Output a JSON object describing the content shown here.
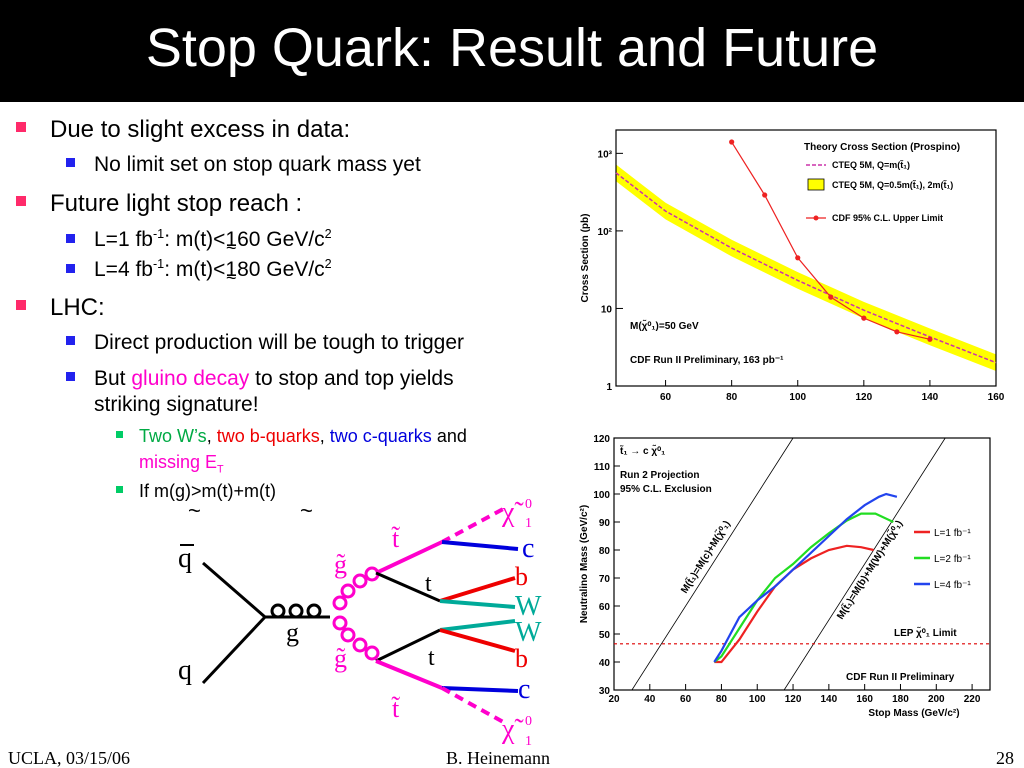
{
  "slide": {
    "title": "Stop Quark: Result and Future",
    "bullets": {
      "b1": "Due to slight excess in data:",
      "b1a": "No limit set on stop quark mass yet",
      "b2": "Future light stop reach :",
      "b2a_pre": "L=1 fb",
      "b2a_sup": "-1",
      "b2a_post": ":  m(t)<160 GeV/c",
      "b2a_sup2": "2",
      "b2b_pre": "L=4 fb",
      "b2b_sup": "-1",
      "b2b_post": ":  m(t)<180 GeV/c",
      "b2b_sup2": "2",
      "tilde": "~",
      "b3": "LHC:",
      "b3a": "Direct production will be tough to trigger",
      "b3b_pre": "But ",
      "b3b_hl": "gluino decay",
      "b3b_post": " to stop and top yields",
      "b3b_line2": "striking signature!",
      "b3c_1": "Two W’s",
      "b3c_2": ", ",
      "b3c_3": "two b-quarks",
      "b3c_4": ", ",
      "b3c_5": "two c-quarks",
      "b3c_6": " and",
      "b3c_7": "missing E",
      "b3c_8": "T",
      "b3d": "If m(g)>m(t)+m(t)"
    },
    "footer": {
      "left": "UCLA, 03/15/06",
      "center": "B. Heinemann",
      "right": "28"
    },
    "colors": {
      "bullet_l1": "#ff2a6a",
      "bullet_l2": "#2222ee",
      "bullet_l3": "#00cc66",
      "highlight": "#ff00cc",
      "title_bg": "#000000"
    }
  },
  "feynman": {
    "q": "q",
    "qbar": "q",
    "g": "g",
    "gluino": "g̃",
    "stop": "t̃",
    "t": "t",
    "b": "b",
    "W": "W",
    "c": "c",
    "chi": "χ̃",
    "chi_sup": "0",
    "chi_sub": "1"
  },
  "chart_data": [
    {
      "type": "line",
      "title": "Theory Cross Section (Prospino)",
      "ylabel": "Cross Section (pb)",
      "xlim": [
        45,
        160
      ],
      "ylim": [
        1,
        2000
      ],
      "yscale": "log",
      "xticks": [
        60,
        80,
        100,
        120,
        140,
        160
      ],
      "yticks": [
        1,
        10,
        100,
        1000
      ],
      "ytick_labels": [
        "1",
        "10",
        "10²",
        "10³"
      ],
      "legend": [
        "CTEQ 5M, Q=m(t̃₁)",
        "CTEQ 5M, Q=0.5m(t̃₁), 2m(t̃₁)",
        "CDF 95% C.L. Upper Limit"
      ],
      "annotations": [
        "M(χ̃⁰₁)=50 GeV",
        "CDF Run II Preliminary, 163 pb⁻¹"
      ],
      "series": [
        {
          "name": "CTEQ 5M, Q=m(t̃₁)",
          "x": [
            45,
            60,
            80,
            100,
            120,
            140,
            160
          ],
          "values": [
            560,
            180,
            60,
            23,
            9.5,
            4.3,
            2.0
          ]
        },
        {
          "name": "CDF 95% C.L. Upper Limit",
          "x": [
            80,
            90,
            100,
            110,
            120,
            130,
            140
          ],
          "values": [
            1400,
            290,
            45,
            14,
            7.5,
            5.0,
            4.0
          ]
        }
      ]
    },
    {
      "type": "line",
      "title": "",
      "xlabel": "Stop Mass (GeV/c²)",
      "ylabel": "Neutralino Mass (GeV/c²)",
      "xlim": [
        20,
        230
      ],
      "ylim": [
        30,
        120
      ],
      "xticks": [
        20,
        40,
        60,
        80,
        100,
        120,
        140,
        160,
        180,
        200,
        220
      ],
      "yticks": [
        30,
        40,
        50,
        60,
        70,
        80,
        90,
        100,
        110,
        120
      ],
      "annotations": [
        "t̃₁ → c χ̃⁰₁",
        "Run 2 Projection",
        "95% C.L. Exclusion",
        "M(t̃₁)=M(c)+M(χ̃⁰₁)",
        "M(t̃₁)=M(b)+M(W)+M(χ̃⁰₁)",
        "LEP χ̃⁰₁ Limit",
        "CDF Run II Preliminary"
      ],
      "series": [
        {
          "name": "L=1 fb⁻¹",
          "x": [
            76,
            80,
            90,
            100,
            110,
            120,
            130,
            140,
            150,
            158,
            165
          ],
          "values": [
            40,
            40,
            48,
            58,
            67,
            73,
            77,
            80,
            81.5,
            81,
            80
          ]
        },
        {
          "name": "L=2 fb⁻¹",
          "x": [
            76,
            80,
            90,
            100,
            110,
            120,
            130,
            140,
            150,
            158,
            166,
            176
          ],
          "values": [
            40,
            42,
            52,
            62,
            70,
            75,
            81,
            86,
            90.5,
            93,
            93,
            90
          ]
        },
        {
          "name": "L=4 fb⁻¹",
          "x": [
            76,
            80,
            90,
            100,
            110,
            120,
            130,
            140,
            150,
            160,
            168,
            172,
            178
          ],
          "values": [
            40,
            44,
            56,
            62,
            67,
            73,
            79,
            85,
            91,
            96,
            99,
            100,
            99
          ]
        }
      ]
    }
  ]
}
